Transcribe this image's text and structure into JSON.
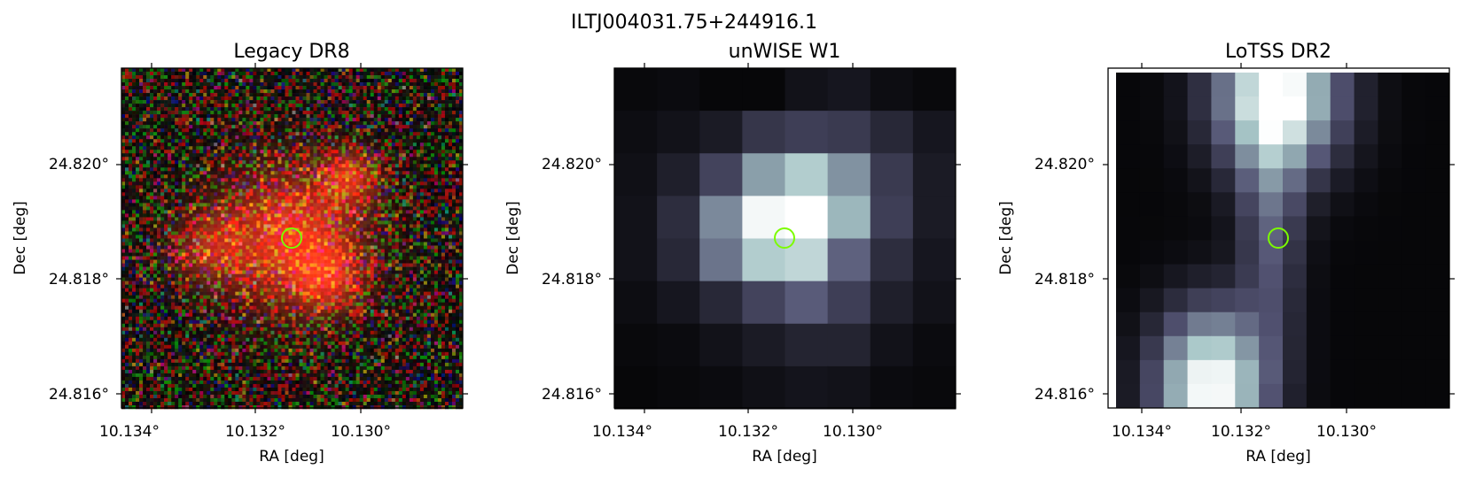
{
  "figure": {
    "suptitle": "ILTJ004031.75+244916.1",
    "marker_color": "#7cfc00"
  },
  "panels": [
    {
      "id": "legacy",
      "title": "Legacy DR8",
      "xlabel": "RA [deg]",
      "ylabel": "Dec [deg]",
      "xticks": [
        "10.134°",
        "10.132°",
        "10.130°"
      ],
      "yticks": [
        "24.820°",
        "24.818°",
        "24.816°"
      ],
      "colormap": "rgb-composite"
    },
    {
      "id": "unwise",
      "title": "unWISE W1",
      "xlabel": "RA [deg]",
      "ylabel": "Dec [deg]",
      "xticks": [
        "10.134°",
        "10.132°",
        "10.130°"
      ],
      "yticks": [
        "24.820°",
        "24.818°",
        "24.816°"
      ],
      "colormap": "bone"
    },
    {
      "id": "lotss",
      "title": "LoTSS DR2",
      "xlabel": "RA [deg]",
      "ylabel": "Dec [deg]",
      "xticks": [
        "10.134°",
        "10.132°",
        "10.130°"
      ],
      "yticks": [
        "24.820°",
        "24.818°",
        "24.816°"
      ],
      "colormap": "bone"
    }
  ]
}
